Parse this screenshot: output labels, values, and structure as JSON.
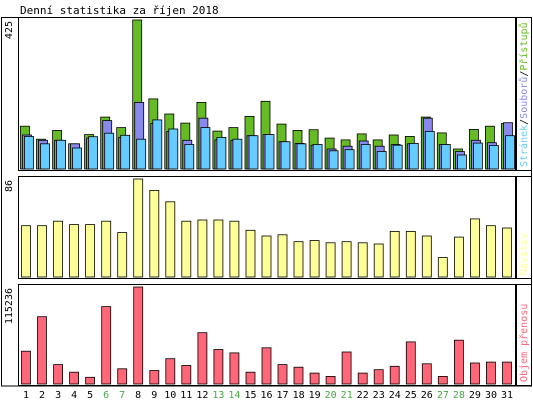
{
  "chart_data": {
    "title": "Denní statistika za říjen 2018",
    "categories": [
      "1",
      "2",
      "3",
      "4",
      "5",
      "6",
      "7",
      "8",
      "9",
      "10",
      "11",
      "12",
      "13",
      "14",
      "15",
      "16",
      "17",
      "18",
      "19",
      "20",
      "21",
      "22",
      "23",
      "24",
      "25",
      "26",
      "27",
      "28",
      "29",
      "30",
      "31"
    ],
    "weekend_days": [
      6,
      7,
      13,
      14,
      20,
      21,
      27,
      28
    ],
    "colors": {
      "pristupu": "#66bb22",
      "souboru": "#8888ee",
      "stranek": "#66ccff",
      "navstev": "#ffff99",
      "prenos": "#ff6677",
      "weekend": "#44aa44",
      "axis_text": "#000000"
    },
    "panels": [
      {
        "type": "bar",
        "ymax_label": "425",
        "ymax": 425,
        "legend_parts": [
          "Stránek",
          "Souborů",
          "Přístupů"
        ],
        "series": [
          {
            "name": "Přístupů",
            "values": [
              122,
              85,
              110,
              72,
              98,
              148,
              118,
              425,
              200,
              157,
              131,
              190,
              108,
              118,
              150,
              193,
              128,
              110,
              112,
              88,
              83,
              100,
              83,
              97,
              93,
              148,
              103,
              57,
              113,
              122,
              130
            ]
          },
          {
            "name": "Souborů",
            "values": [
              97,
              82,
              82,
              72,
              88,
              138,
              90,
              190,
              130,
              107,
              82,
              145,
              83,
              82,
              95,
              98,
              78,
              73,
              68,
              57,
              65,
              80,
              65,
              70,
              72,
              145,
              70,
              50,
              82,
              75,
              132
            ]
          },
          {
            "name": "Stránek",
            "values": [
              93,
              72,
              82,
              60,
              92,
              102,
              96,
              85,
              140,
              114,
              70,
              118,
              90,
              85,
              95,
              98,
              78,
              72,
              70,
              52,
              55,
              70,
              50,
              68,
              73,
              107,
              70,
              40,
              74,
              67,
              95
            ]
          }
        ]
      },
      {
        "type": "bar",
        "ymax_label": "86",
        "ymax": 86,
        "legend_parts": [
          "Návštěv"
        ],
        "series": [
          {
            "name": "Návštěv",
            "values": [
              45,
              45,
              49,
              46,
              46,
              49,
              39,
              86,
              76,
              66,
              49,
              50,
              50,
              49,
              41,
              36,
              37,
              31,
              32,
              30,
              31,
              30,
              29,
              40,
              40,
              36,
              17,
              35,
              51,
              45,
              43
            ]
          }
        ]
      },
      {
        "type": "bar",
        "ymax_label": "115236",
        "ymax": 115236,
        "legend_parts": [
          "Objem přenosu"
        ],
        "series": [
          {
            "name": "Objem přenosu",
            "values": [
              39000,
              80000,
              23000,
              14000,
              8000,
              92000,
              18000,
              115236,
              16000,
              30000,
              22000,
              61000,
              41000,
              37000,
              14000,
              43000,
              23000,
              20000,
              13000,
              9000,
              38000,
              13000,
              17000,
              21000,
              50000,
              24000,
              9000,
              52000,
              25000,
              26000,
              26000
            ]
          }
        ]
      }
    ]
  }
}
